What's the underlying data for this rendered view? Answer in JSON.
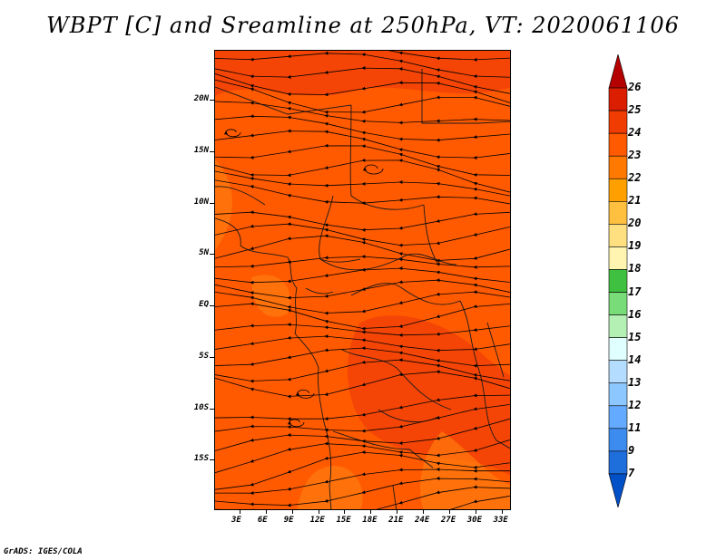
{
  "title": "WBPT [C] and Sreamline at 250hPa, VT: 2020061106",
  "credit": "GrADS: IGES/COLA",
  "map": {
    "lat_ticks": [
      {
        "label": "20N",
        "lat": 20
      },
      {
        "label": "15N",
        "lat": 15
      },
      {
        "label": "10N",
        "lat": 10
      },
      {
        "label": "5N",
        "lat": 5
      },
      {
        "label": "EQ",
        "lat": 0
      },
      {
        "label": "5S",
        "lat": -5
      },
      {
        "label": "10S",
        "lat": -10
      },
      {
        "label": "15S",
        "lat": -15
      }
    ],
    "lon_ticks": [
      {
        "label": "3E",
        "lon": 3
      },
      {
        "label": "6E",
        "lon": 6
      },
      {
        "label": "9E",
        "lon": 9
      },
      {
        "label": "12E",
        "lon": 12
      },
      {
        "label": "15E",
        "lon": 15
      },
      {
        "label": "18E",
        "lon": 18
      },
      {
        "label": "21E",
        "lon": 21
      },
      {
        "label": "24E",
        "lon": 24
      },
      {
        "label": "27E",
        "lon": 27
      },
      {
        "label": "30E",
        "lon": 30
      },
      {
        "label": "33E",
        "lon": 33
      }
    ],
    "fill_colors": {
      "main": "#ff5a00",
      "patch_dark": "#f03c08",
      "patch_light": "#ff7a10"
    }
  },
  "colorbar": {
    "labels": [
      "26",
      "25",
      "24",
      "23",
      "22",
      "21",
      "20",
      "19",
      "18",
      "17",
      "16",
      "15",
      "14",
      "13",
      "12",
      "11",
      "9",
      "7"
    ],
    "colors": [
      "#b40000",
      "#dc1e00",
      "#f03c00",
      "#ff5a00",
      "#ff7800",
      "#ffa000",
      "#ffc040",
      "#ffe080",
      "#fff5b0",
      "#40c040",
      "#78dc78",
      "#b4f0b4",
      "#e0ffff",
      "#b4dcff",
      "#8cc8ff",
      "#64aaff",
      "#3c8cf0",
      "#1e6edc",
      "#0050c8"
    ]
  }
}
